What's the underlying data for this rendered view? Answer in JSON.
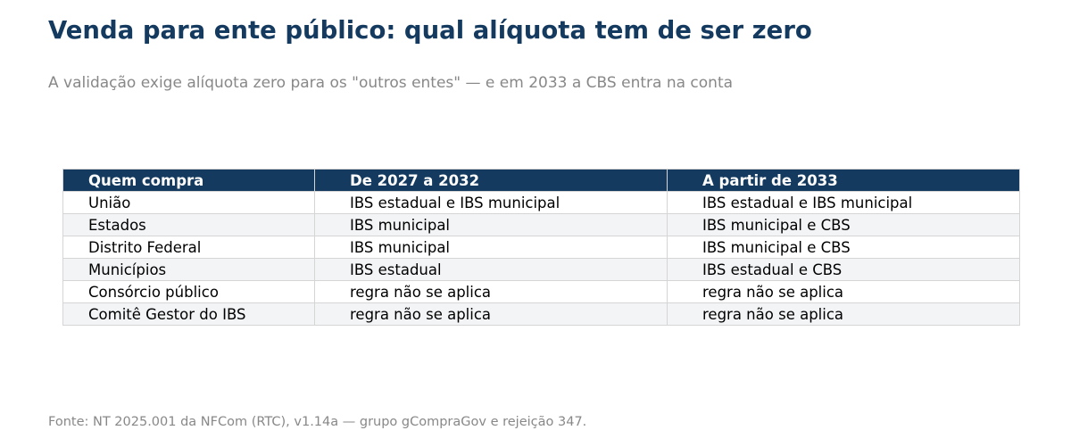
{
  "title": "Venda para ente público: qual alíquota tem de ser zero",
  "subtitle": "A validação exige alíquota zero para os \"outros entes\" — e em 2033 a CBS entra na conta",
  "source": "Fonte: NT 2025.001 da NFCom (RTC), v1.14a — grupo gCompraGov e rejeição 347.",
  "colors": {
    "title": "#143a5f",
    "header_bg": "#143a5f",
    "header_text": "#ffffff",
    "row_alt_bg": "#f3f4f6",
    "muted_text": "#888888"
  },
  "chart_data": {
    "type": "table",
    "columns": [
      "Quem compra",
      "De 2027 a 2032",
      "A partir de 2033"
    ],
    "rows": [
      [
        "União",
        "IBS estadual e IBS municipal",
        "IBS estadual e IBS municipal"
      ],
      [
        "Estados",
        "IBS municipal",
        "IBS municipal e CBS"
      ],
      [
        "Distrito Federal",
        "IBS municipal",
        "IBS municipal e CBS"
      ],
      [
        "Municípios",
        "IBS estadual",
        "IBS estadual e CBS"
      ],
      [
        "Consórcio público",
        "regra não se aplica",
        "regra não se aplica"
      ],
      [
        "Comitê Gestor do IBS",
        "regra não se aplica",
        "regra não se aplica"
      ]
    ]
  }
}
